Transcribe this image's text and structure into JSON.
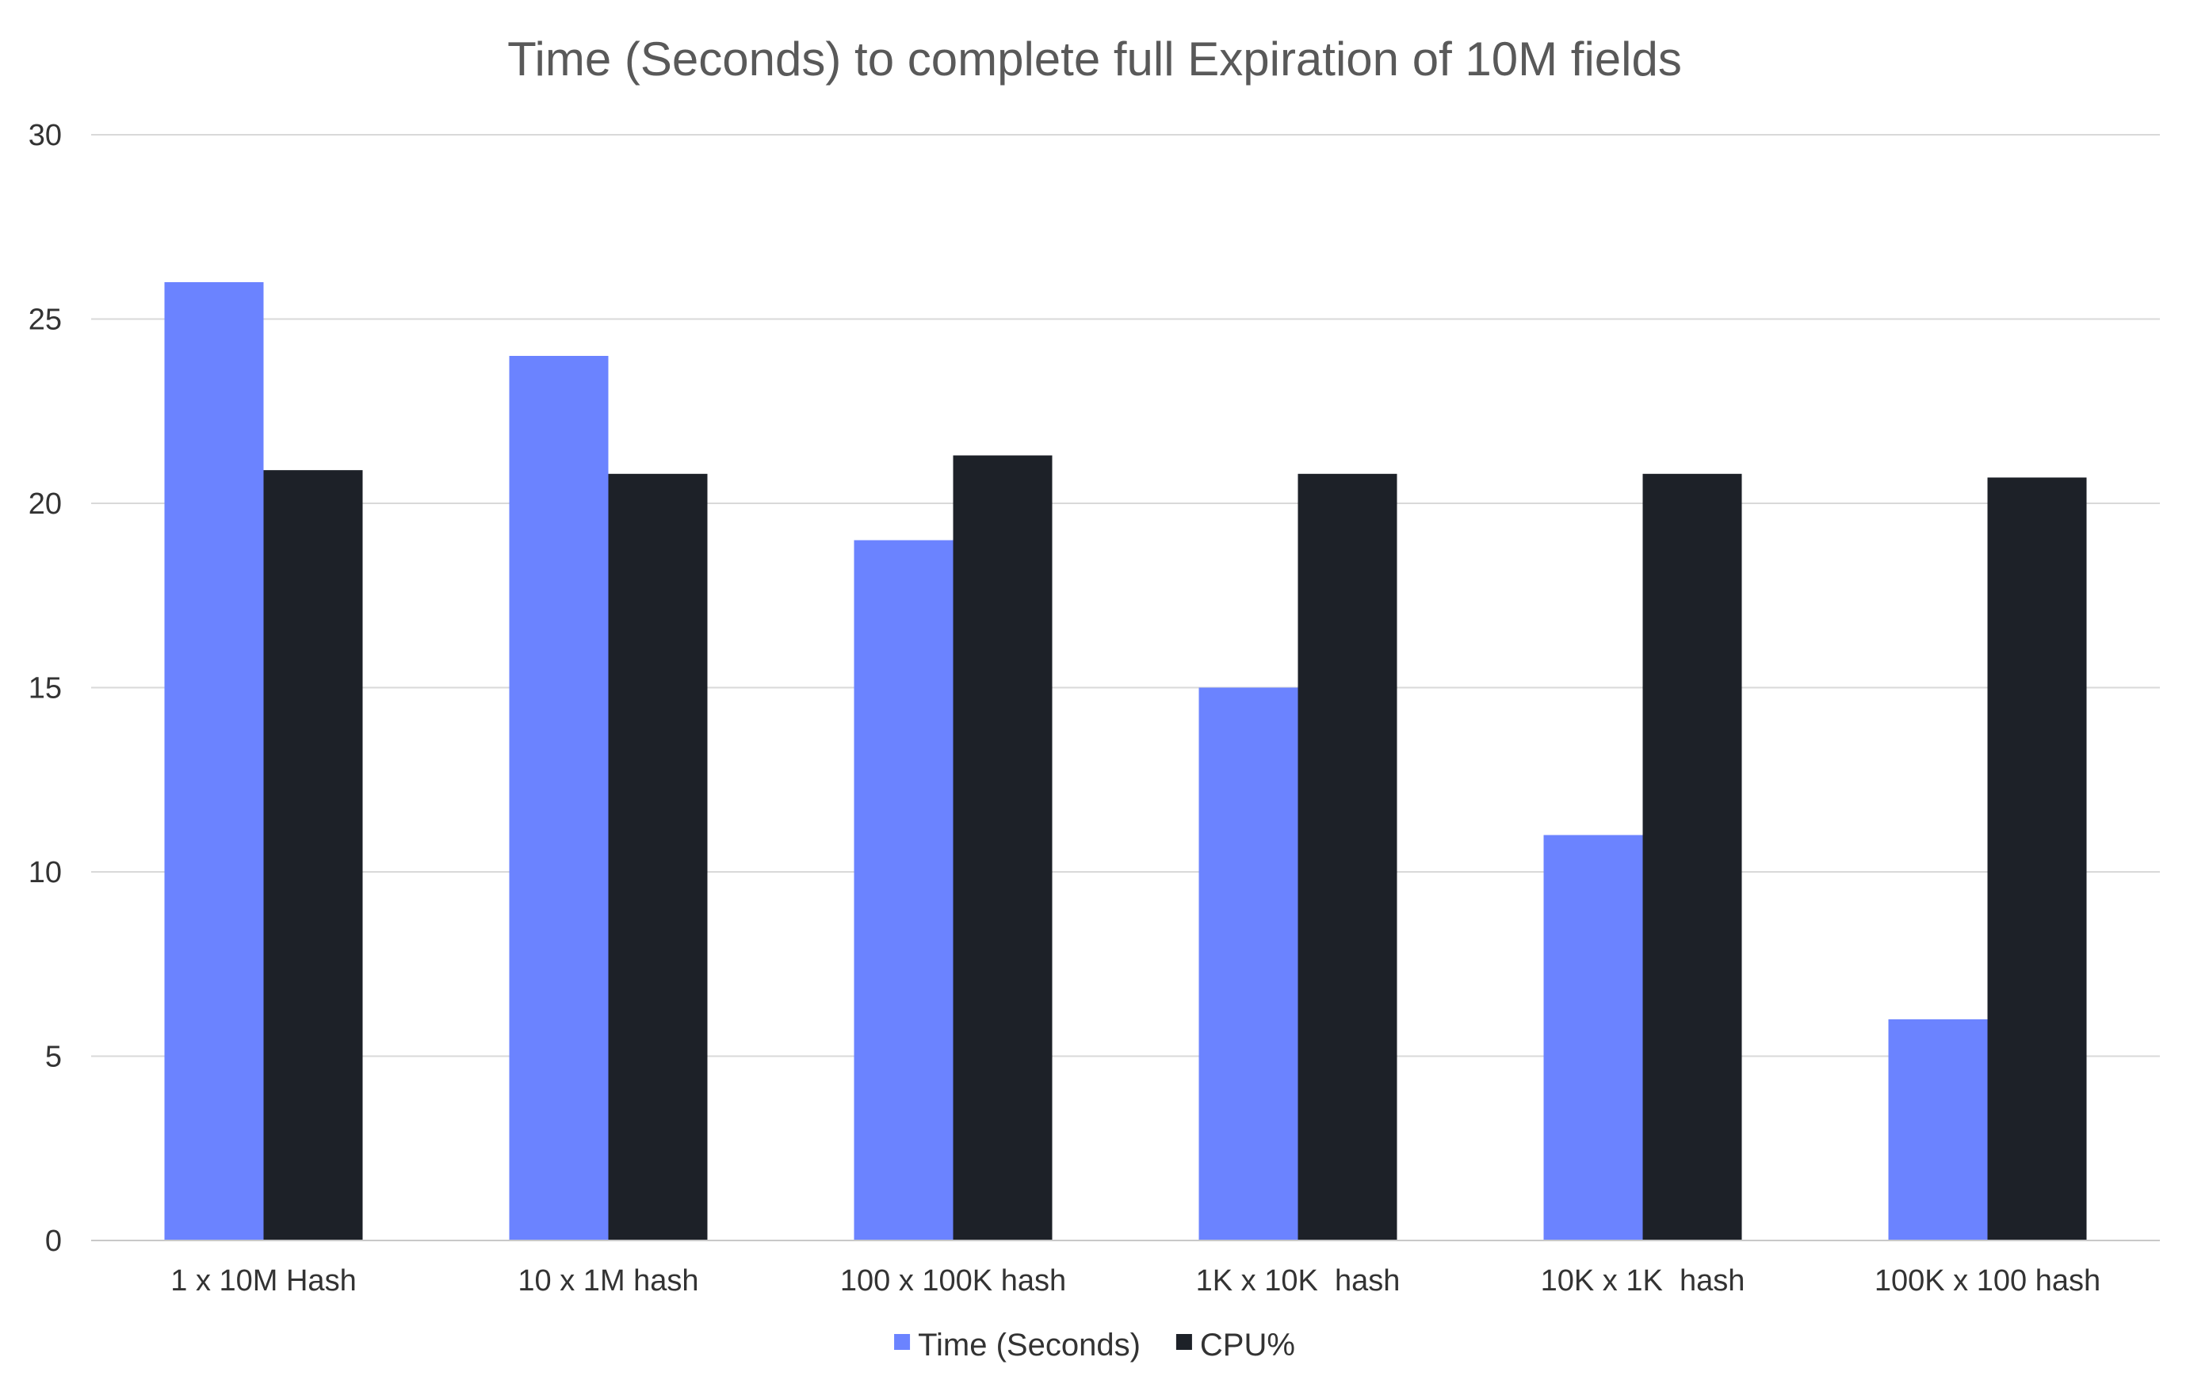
{
  "chart_data": {
    "type": "bar",
    "title": "Time (Seconds) to complete full Expiration of 10M fields",
    "xlabel": "",
    "ylabel": "",
    "categories": [
      "1 x 10M Hash",
      "10 x 1M hash",
      "100 x 100K hash",
      "1K x 10K  hash",
      "10K x 1K  hash",
      "100K x 100 hash"
    ],
    "series": [
      {
        "name": "Time (Seconds)",
        "color": "#6b83ff",
        "values": [
          26,
          24,
          19,
          15,
          11,
          6
        ]
      },
      {
        "name": "CPU%",
        "color": "#1d2128",
        "values": [
          20.9,
          20.8,
          21.3,
          20.8,
          20.8,
          20.7
        ]
      }
    ],
    "ylim": [
      0,
      30
    ],
    "yticks": [
      "0",
      "5",
      "10",
      "15",
      "20",
      "25",
      "30"
    ],
    "grid": true,
    "legend_position": "bottom-center"
  }
}
